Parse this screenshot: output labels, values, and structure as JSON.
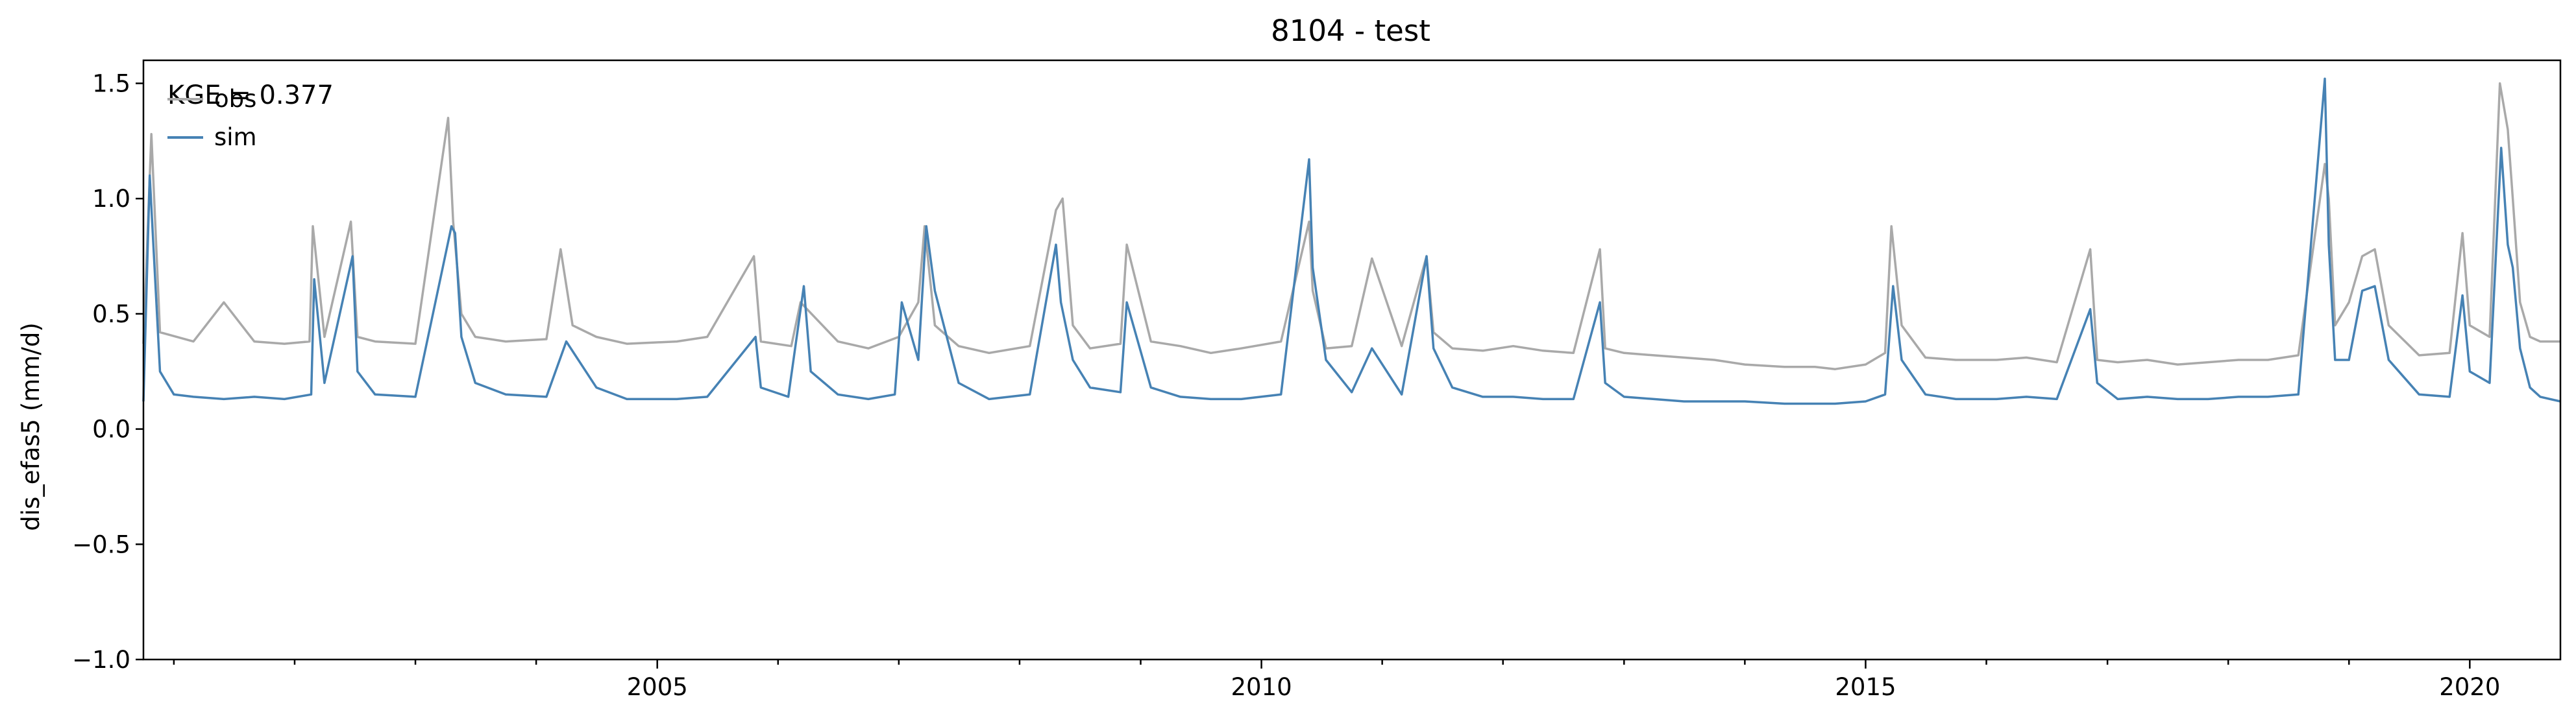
{
  "chart_data": {
    "type": "line",
    "title": "8104 - test",
    "xlabel": "",
    "ylabel": "dis_efas5 (mm/d)",
    "xlim": [
      "2000-10-01",
      "2020-10-01"
    ],
    "ylim": [
      -1.0,
      1.6
    ],
    "y_ticks": [
      -1.0,
      -0.5,
      0.0,
      0.5,
      1.0,
      1.5
    ],
    "y_tick_labels": [
      "−1.0",
      "−0.5",
      "0.0",
      "0.5",
      "1.0",
      "1.5"
    ],
    "x_ticks": [
      "2005-01-01",
      "2010-01-01",
      "2015-01-01",
      "2020-01-01"
    ],
    "x_tick_labels": [
      "2005",
      "2010",
      "2015",
      "2020"
    ],
    "grid": false,
    "legend_position": "top-left",
    "annotation": "KGE = 0.377",
    "series": [
      {
        "name": "obs",
        "color": "#a9a9a9",
        "x": [
          "2000-10-01",
          "2000-10-25",
          "2000-11-20",
          "2001-03-01",
          "2001-06-01",
          "2001-09-01",
          "2001-12-01",
          "2002-02-15",
          "2002-02-25",
          "2002-04-01",
          "2002-06-20",
          "2002-07-10",
          "2002-09-01",
          "2003-01-01",
          "2003-04-10",
          "2003-04-25",
          "2003-05-20",
          "2003-07-01",
          "2003-10-01",
          "2004-02-01",
          "2004-03-15",
          "2004-04-20",
          "2004-07-01",
          "2004-10-01",
          "2005-03-01",
          "2005-06-01",
          "2005-10-20",
          "2005-11-10",
          "2006-02-10",
          "2006-03-10",
          "2006-07-01",
          "2006-10-01",
          "2007-01-01",
          "2007-03-01",
          "2007-03-20",
          "2007-04-20",
          "2007-07-01",
          "2007-10-01",
          "2008-02-01",
          "2008-04-20",
          "2008-05-10",
          "2008-06-10",
          "2008-08-01",
          "2008-11-01",
          "2008-11-20",
          "2009-02-01",
          "2009-05-01",
          "2009-08-01",
          "2009-11-01",
          "2010-03-01",
          "2010-05-25",
          "2010-06-05",
          "2010-07-15",
          "2010-10-01",
          "2010-12-01",
          "2011-03-01",
          "2011-05-15",
          "2011-06-05",
          "2011-08-01",
          "2011-11-01",
          "2012-02-01",
          "2012-05-01",
          "2012-08-01",
          "2012-10-20",
          "2012-11-05",
          "2013-01-01",
          "2013-04-01",
          "2013-07-01",
          "2013-10-01",
          "2014-01-01",
          "2014-05-01",
          "2014-08-01",
          "2014-10-01",
          "2015-01-01",
          "2015-03-01",
          "2015-03-20",
          "2015-04-20",
          "2015-07-01",
          "2015-10-01",
          "2016-02-01",
          "2016-05-01",
          "2016-08-01",
          "2016-11-10",
          "2016-12-01",
          "2017-02-01",
          "2017-05-01",
          "2017-08-01",
          "2017-11-01",
          "2018-02-01",
          "2018-05-01",
          "2018-08-01",
          "2018-10-20",
          "2018-11-01",
          "2018-11-20",
          "2019-01-01",
          "2019-02-10",
          "2019-03-20",
          "2019-05-01",
          "2019-08-01",
          "2019-11-01",
          "2019-12-10",
          "2020-01-01",
          "2020-03-01",
          "2020-04-01",
          "2020-04-25",
          "2020-05-10",
          "2020-06-01",
          "2020-07-01",
          "2020-08-01",
          "2020-10-01"
        ],
        "values": [
          0.37,
          1.28,
          0.42,
          0.38,
          0.55,
          0.38,
          0.37,
          0.38,
          0.88,
          0.4,
          0.9,
          0.4,
          0.38,
          0.37,
          1.35,
          0.9,
          0.5,
          0.4,
          0.38,
          0.39,
          0.78,
          0.45,
          0.4,
          0.37,
          0.38,
          0.4,
          0.75,
          0.38,
          0.36,
          0.55,
          0.38,
          0.35,
          0.4,
          0.55,
          0.88,
          0.45,
          0.36,
          0.33,
          0.36,
          0.95,
          1.0,
          0.45,
          0.35,
          0.37,
          0.8,
          0.38,
          0.36,
          0.33,
          0.35,
          0.38,
          0.9,
          0.6,
          0.35,
          0.36,
          0.74,
          0.36,
          0.75,
          0.42,
          0.35,
          0.34,
          0.36,
          0.34,
          0.33,
          0.78,
          0.35,
          0.33,
          0.32,
          0.31,
          0.3,
          0.28,
          0.27,
          0.27,
          0.26,
          0.28,
          0.33,
          0.88,
          0.45,
          0.31,
          0.3,
          0.3,
          0.31,
          0.29,
          0.78,
          0.3,
          0.29,
          0.3,
          0.28,
          0.29,
          0.3,
          0.3,
          0.32,
          1.15,
          1.0,
          0.45,
          0.55,
          0.75,
          0.78,
          0.45,
          0.32,
          0.33,
          0.85,
          0.45,
          0.4,
          1.5,
          1.3,
          1.0,
          0.55,
          0.4,
          0.38,
          0.38
        ]
      },
      {
        "name": "sim",
        "color": "#4682b4",
        "x": [
          "2000-10-01",
          "2000-10-20",
          "2000-11-20",
          "2001-01-01",
          "2001-03-01",
          "2001-06-01",
          "2001-09-01",
          "2001-12-01",
          "2002-02-20",
          "2002-03-01",
          "2002-04-01",
          "2002-06-25",
          "2002-07-10",
          "2002-09-01",
          "2003-01-01",
          "2003-04-20",
          "2003-05-01",
          "2003-05-20",
          "2003-07-01",
          "2003-10-01",
          "2004-02-01",
          "2004-04-01",
          "2004-07-01",
          "2004-10-01",
          "2005-03-01",
          "2005-06-01",
          "2005-10-25",
          "2005-11-10",
          "2006-02-01",
          "2006-03-20",
          "2006-04-10",
          "2006-07-01",
          "2006-10-01",
          "2006-12-20",
          "2007-01-10",
          "2007-03-01",
          "2007-03-25",
          "2007-04-20",
          "2007-07-01",
          "2007-10-01",
          "2008-02-01",
          "2008-04-20",
          "2008-05-05",
          "2008-06-10",
          "2008-08-01",
          "2008-11-01",
          "2008-11-20",
          "2009-02-01",
          "2009-05-01",
          "2009-08-01",
          "2009-11-01",
          "2010-03-01",
          "2010-05-25",
          "2010-06-05",
          "2010-07-15",
          "2010-10-01",
          "2010-12-01",
          "2011-03-01",
          "2011-05-15",
          "2011-06-05",
          "2011-08-01",
          "2011-11-01",
          "2012-02-01",
          "2012-05-01",
          "2012-08-01",
          "2012-10-20",
          "2012-11-05",
          "2013-01-01",
          "2013-04-01",
          "2013-07-01",
          "2013-10-01",
          "2014-01-01",
          "2014-05-01",
          "2014-08-01",
          "2014-10-01",
          "2015-01-01",
          "2015-03-01",
          "2015-03-25",
          "2015-04-20",
          "2015-07-01",
          "2015-10-01",
          "2016-02-01",
          "2016-05-01",
          "2016-08-01",
          "2016-11-10",
          "2016-12-01",
          "2017-02-01",
          "2017-05-01",
          "2017-08-01",
          "2017-11-01",
          "2018-02-01",
          "2018-05-01",
          "2018-08-01",
          "2018-10-20",
          "2018-11-01",
          "2018-11-20",
          "2019-01-01",
          "2019-02-10",
          "2019-03-20",
          "2019-05-01",
          "2019-08-01",
          "2019-11-01",
          "2019-12-10",
          "2020-01-01",
          "2020-03-01",
          "2020-04-05",
          "2020-04-25",
          "2020-05-10",
          "2020-06-01",
          "2020-07-01",
          "2020-08-01",
          "2020-10-01"
        ],
        "values": [
          0.12,
          1.1,
          0.25,
          0.15,
          0.14,
          0.13,
          0.14,
          0.13,
          0.15,
          0.65,
          0.2,
          0.75,
          0.25,
          0.15,
          0.14,
          0.88,
          0.85,
          0.4,
          0.2,
          0.15,
          0.14,
          0.38,
          0.18,
          0.13,
          0.13,
          0.14,
          0.4,
          0.18,
          0.14,
          0.62,
          0.25,
          0.15,
          0.13,
          0.15,
          0.55,
          0.3,
          0.88,
          0.6,
          0.2,
          0.13,
          0.15,
          0.8,
          0.55,
          0.3,
          0.18,
          0.16,
          0.55,
          0.18,
          0.14,
          0.13,
          0.13,
          0.15,
          1.17,
          0.7,
          0.3,
          0.16,
          0.35,
          0.15,
          0.75,
          0.35,
          0.18,
          0.14,
          0.14,
          0.13,
          0.13,
          0.55,
          0.2,
          0.14,
          0.13,
          0.12,
          0.12,
          0.12,
          0.11,
          0.11,
          0.11,
          0.12,
          0.15,
          0.62,
          0.3,
          0.15,
          0.13,
          0.13,
          0.14,
          0.13,
          0.52,
          0.2,
          0.13,
          0.14,
          0.13,
          0.13,
          0.14,
          0.14,
          0.15,
          1.52,
          0.8,
          0.3,
          0.3,
          0.6,
          0.62,
          0.3,
          0.15,
          0.14,
          0.58,
          0.25,
          0.2,
          1.22,
          0.8,
          0.7,
          0.35,
          0.18,
          0.14,
          0.12
        ]
      }
    ]
  }
}
